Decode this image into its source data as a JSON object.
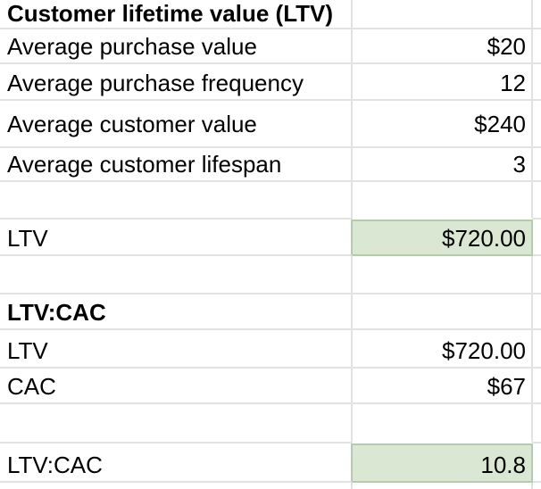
{
  "sheet": {
    "rows": [
      {
        "label": "Customer lifetime value (LTV)",
        "value": ""
      },
      {
        "label": "Average purchase value",
        "value": "$20"
      },
      {
        "label": "Average purchase frequency",
        "value": "12"
      },
      {
        "label": "Average customer value",
        "value": "$240"
      },
      {
        "label": "Average customer lifespan",
        "value": "3"
      },
      {
        "label": "",
        "value": ""
      },
      {
        "label": "LTV",
        "value": "$720.00"
      },
      {
        "label": "",
        "value": ""
      },
      {
        "label": "LTV:CAC",
        "value": ""
      },
      {
        "label": "LTV",
        "value": "$720.00"
      },
      {
        "label": "CAC",
        "value": "$67"
      },
      {
        "label": "",
        "value": ""
      },
      {
        "label": "LTV:CAC",
        "value": "10.8"
      },
      {
        "label": "",
        "value": ""
      }
    ],
    "colors": {
      "highlight_fill": "#d9e7d3",
      "highlight_border": "#b5cbad",
      "gridline": "#e2e2e2",
      "text": "#000000",
      "background": "#ffffff"
    }
  }
}
